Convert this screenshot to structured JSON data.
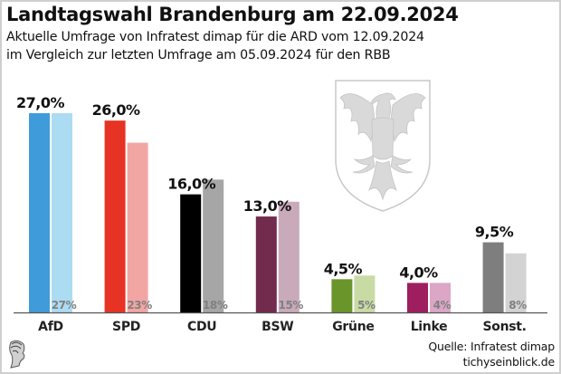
{
  "header": {
    "title": "Landtagswahl Brandenburg am 22.09.2024",
    "subtitle_line1": "Aktuelle Umfrage von Infratest dimap für die ARD vom 12.09.2024",
    "subtitle_line2": "im Vergleich zur letzten Umfrage am 05.09.2024 für den RBB"
  },
  "footer": {
    "source": "Quelle: Infratest dimap",
    "site": "tichyseinblick.de"
  },
  "chart_data": {
    "type": "bar",
    "title": "Landtagswahl Brandenburg am 22.09.2024",
    "xlabel": "",
    "ylabel": "",
    "ylim": [
      0,
      27
    ],
    "grid": false,
    "categories": [
      "AfD",
      "SPD",
      "CDU",
      "BSW",
      "Grüne",
      "Linke",
      "Sonst."
    ],
    "series": [
      {
        "name": "Umfrage 12.09.2024",
        "values": [
          27.0,
          26.0,
          16.0,
          13.0,
          4.5,
          4.0,
          9.5
        ],
        "labels": [
          "27,0%",
          "26,0%",
          "16,0%",
          "13,0%",
          "4,5%",
          "4,0%",
          "9,5%"
        ],
        "colors": [
          "#409bda",
          "#e63323",
          "#000000",
          "#722a4d",
          "#6a952b",
          "#9e1e5f",
          "#7e7e7e"
        ]
      },
      {
        "name": "Umfrage 05.09.2024",
        "values": [
          27,
          23,
          18,
          15,
          5,
          4,
          8
        ],
        "labels": [
          "27%",
          "23%",
          "18%",
          "15%",
          "5%",
          "4%",
          "8%"
        ],
        "colors": [
          "#acdcf2",
          "#f2a6a4",
          "#a6a6a6",
          "#c9aabb",
          "#c9dba5",
          "#dca6c6",
          "#d3d3d3"
        ]
      }
    ]
  }
}
